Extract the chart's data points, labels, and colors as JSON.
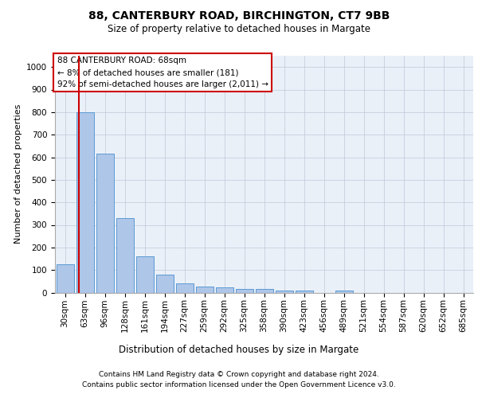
{
  "title1": "88, CANTERBURY ROAD, BIRCHINGTON, CT7 9BB",
  "title2": "Size of property relative to detached houses in Margate",
  "xlabel": "Distribution of detached houses by size in Margate",
  "ylabel": "Number of detached properties",
  "categories": [
    "30sqm",
    "63sqm",
    "96sqm",
    "128sqm",
    "161sqm",
    "194sqm",
    "227sqm",
    "259sqm",
    "292sqm",
    "325sqm",
    "358sqm",
    "390sqm",
    "423sqm",
    "456sqm",
    "489sqm",
    "521sqm",
    "554sqm",
    "587sqm",
    "620sqm",
    "652sqm",
    "685sqm"
  ],
  "values": [
    125,
    800,
    615,
    330,
    160,
    78,
    40,
    27,
    22,
    15,
    15,
    10,
    10,
    0,
    10,
    0,
    0,
    0,
    0,
    0,
    0
  ],
  "bar_color": "#aec6e8",
  "bar_edge_color": "#5b9bd5",
  "property_line_color": "#cc0000",
  "annotation_text": "88 CANTERBURY ROAD: 68sqm\n← 8% of detached houses are smaller (181)\n92% of semi-detached houses are larger (2,011) →",
  "annotation_box_color": "#cc0000",
  "footnote1": "Contains HM Land Registry data © Crown copyright and database right 2024.",
  "footnote2": "Contains public sector information licensed under the Open Government Licence v3.0.",
  "ylim": [
    0,
    1050
  ],
  "yticks": [
    0,
    100,
    200,
    300,
    400,
    500,
    600,
    700,
    800,
    900,
    1000
  ],
  "bg_color": "#eaf0f8",
  "fig_bg_color": "#ffffff",
  "title1_fontsize": 10,
  "title2_fontsize": 8.5,
  "ylabel_fontsize": 8,
  "xlabel_fontsize": 8.5,
  "tick_fontsize": 7.5,
  "annot_fontsize": 7.5,
  "footnote_fontsize": 6.5
}
